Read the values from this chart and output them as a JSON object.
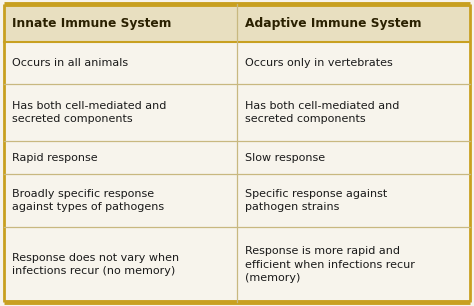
{
  "header_bg": "#e8dfc0",
  "body_bg": "#f7f4ec",
  "border_color": "#c8a020",
  "divider_color": "#c8b880",
  "header_text_color": "#2a2000",
  "body_text_color": "#1a1a1a",
  "col1_header": "Innate Immune System",
  "col2_header": "Adaptive Immune System",
  "rows": [
    [
      "Occurs in all animals",
      "Occurs only in vertebrates"
    ],
    [
      "Has both cell-mediated and\nsecreted components",
      "Has both cell-mediated and\nsecreted components"
    ],
    [
      "Rapid response",
      "Slow response"
    ],
    [
      "Broadly specific response\nagainst types of pathogens",
      "Specific response against\npathogen strains"
    ],
    [
      "Response does not vary when\ninfections recur (no memory)",
      "Response is more rapid and\nefficient when infections recur\n(memory)"
    ]
  ],
  "figsize": [
    4.74,
    3.06
  ],
  "dpi": 100,
  "fig_bg": "#f7f4ec"
}
